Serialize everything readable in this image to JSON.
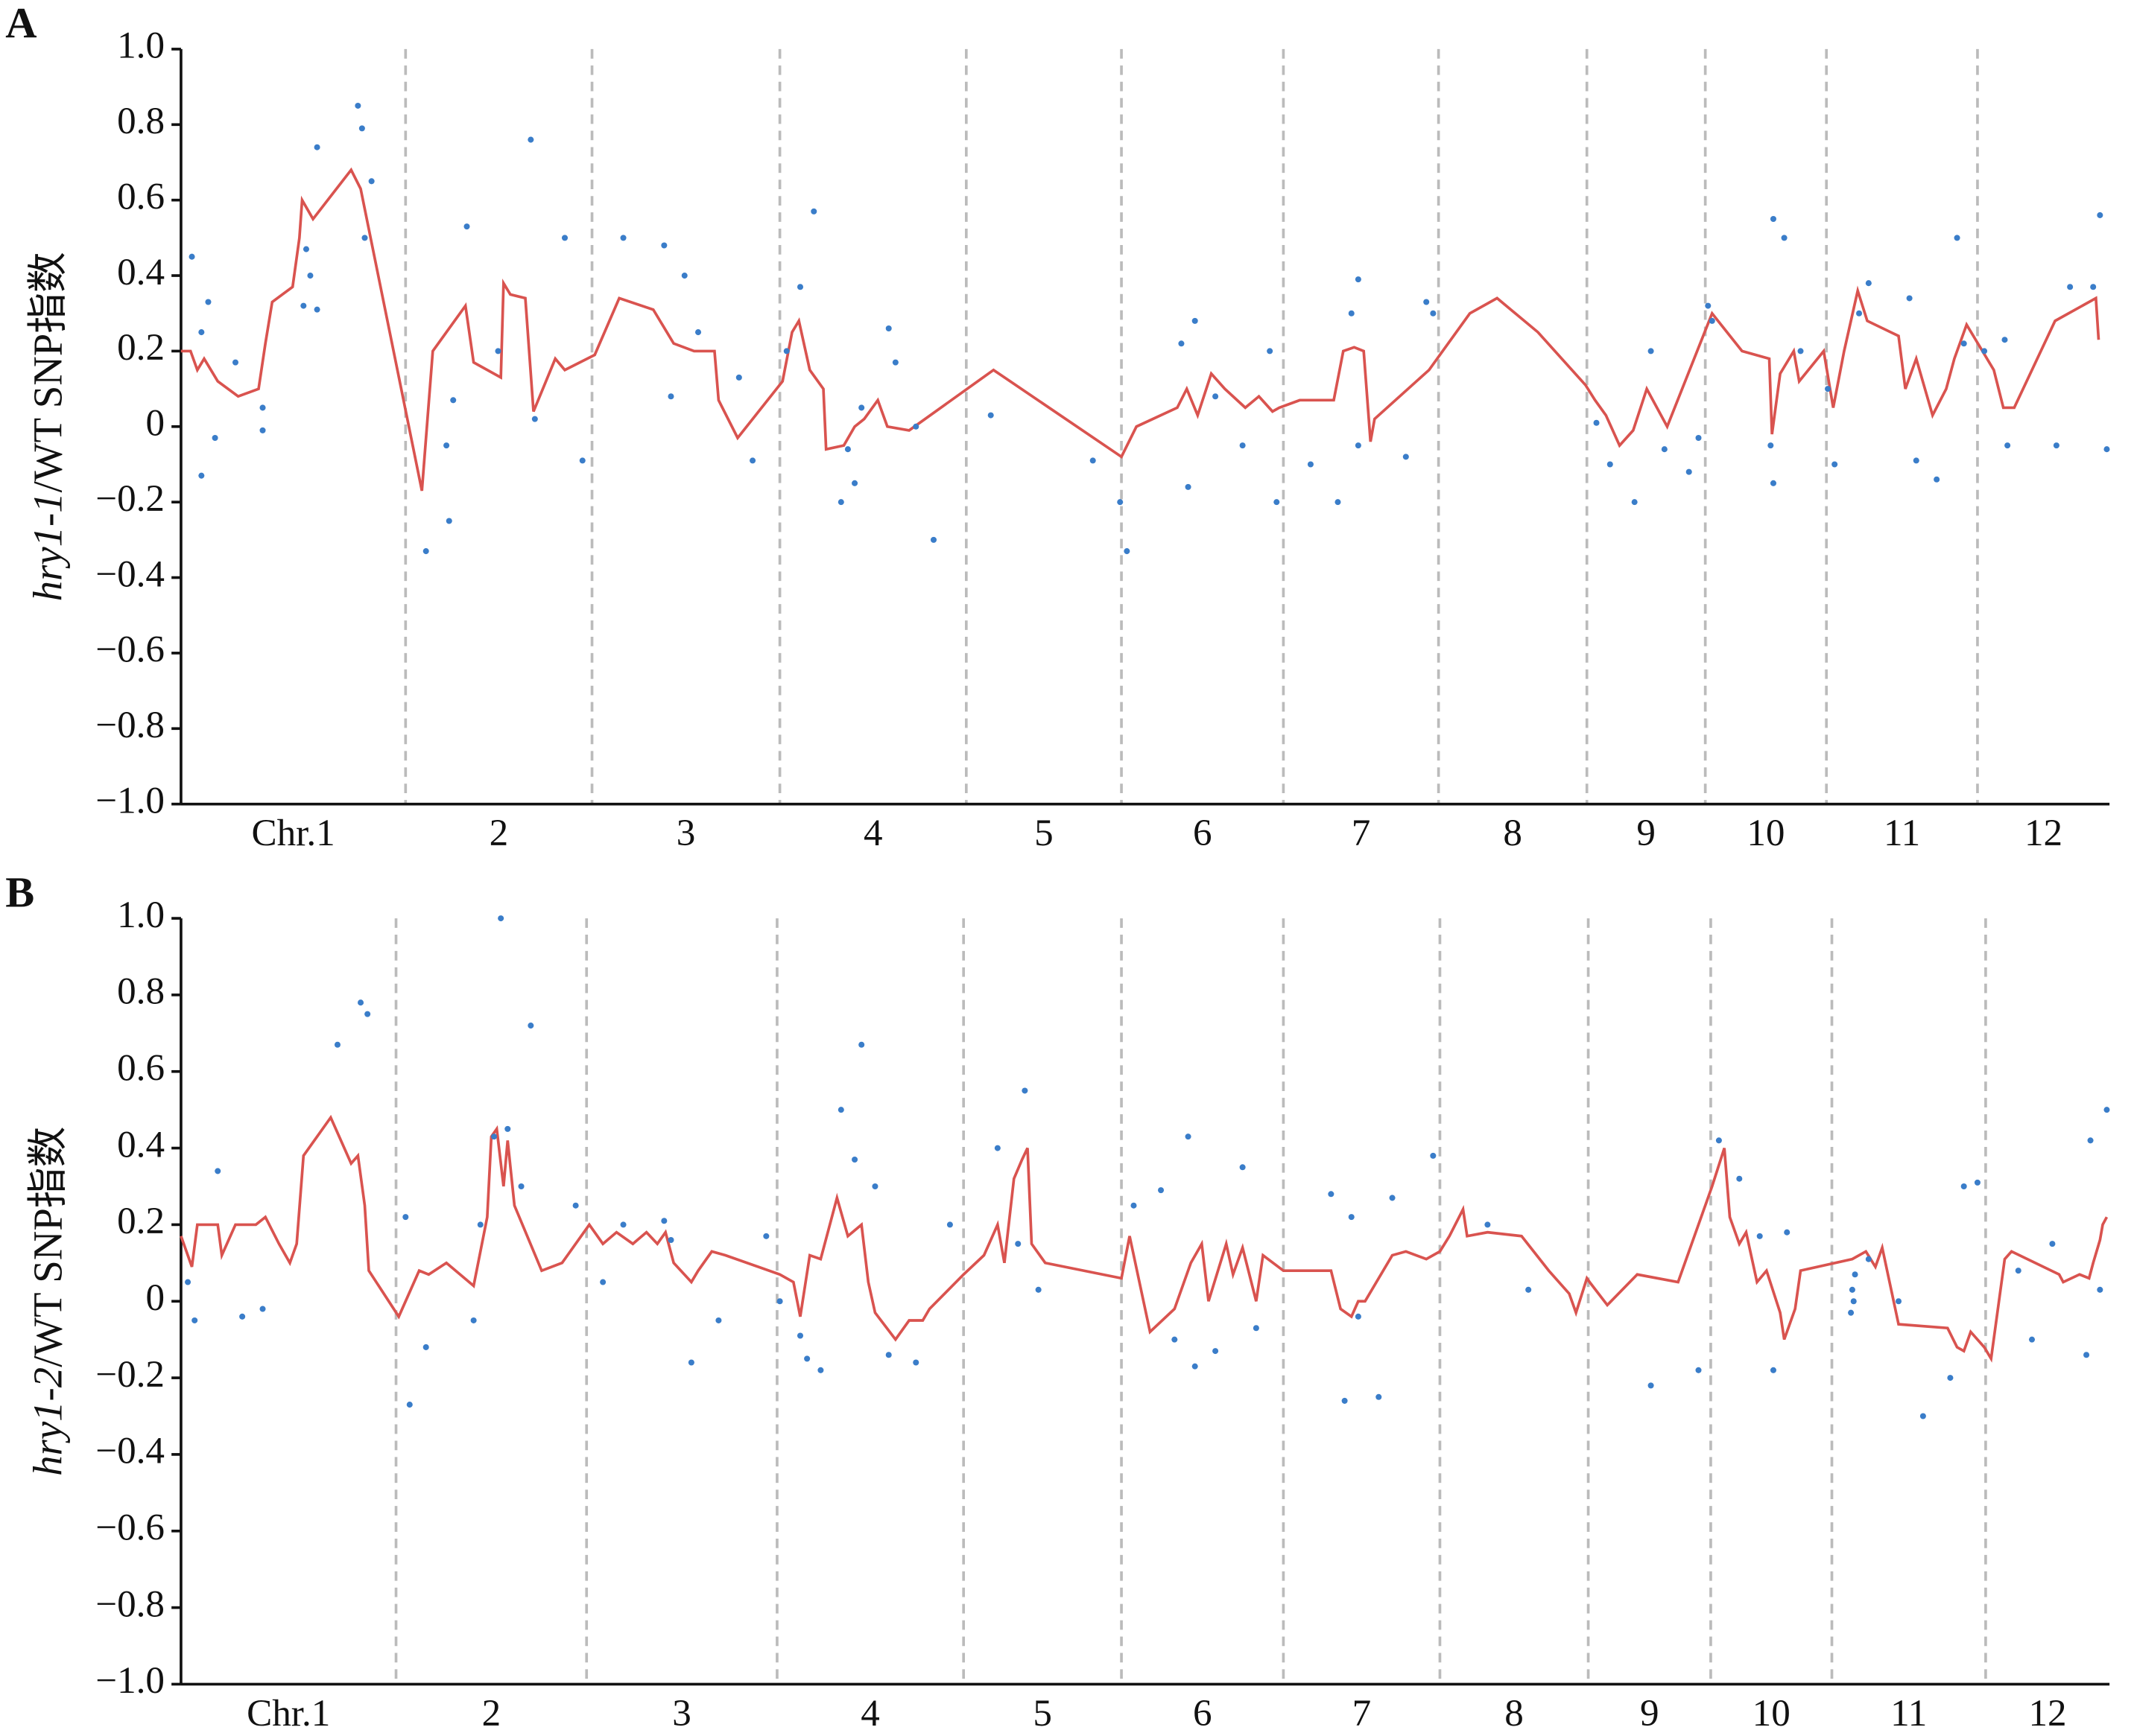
{
  "chart_data": [
    {
      "type": "line",
      "panel": "A",
      "ylabel": [
        "hry1-1",
        "/WT SNP指数"
      ],
      "categories": [
        "Chr.1",
        "2",
        "3",
        "4",
        "5",
        "6",
        "7",
        "8",
        "9",
        "10",
        "11",
        "12"
      ],
      "x_boundaries": [
        165,
        302,
        440,
        577,
        691,
        810,
        924,
        1033,
        1120,
        1209,
        1320
      ],
      "xlim": [
        0,
        1417
      ],
      "ylim": [
        -1,
        1
      ],
      "yticks": [
        {
          "value": 1,
          "label": "1.0"
        },
        0.8,
        0.6,
        0.4,
        0.2,
        0,
        {
          "value": -0.2,
          "label": "−0.2"
        },
        {
          "value": -0.4,
          "label": "−0.4"
        },
        {
          "value": -0.6,
          "label": "−0.6"
        },
        {
          "value": -0.8,
          "label": "−0.8"
        },
        {
          "value": -1,
          "label": "−1.0"
        }
      ],
      "line": {
        "color": "#d9534f",
        "x": [
          0,
          7,
          12,
          17,
          27,
          42,
          57,
          62,
          67,
          82,
          87,
          89,
          97,
          125,
          132,
          177,
          185,
          209,
          215,
          235,
          237,
          242,
          253,
          259,
          275,
          282,
          304,
          322,
          347,
          362,
          377,
          392,
          395,
          409,
          442,
          449,
          454,
          462,
          472,
          474,
          487,
          495,
          502,
          512,
          519,
          535,
          597,
          691,
          702,
          732,
          739,
          747,
          757,
          767,
          782,
          792,
          802,
          807,
          822,
          847,
          854,
          862,
          869,
          874,
          877,
          917,
          947,
          967,
          997,
          1032,
          1039,
          1047,
          1057,
          1067,
          1077,
          1092,
          1125,
          1147,
          1167,
          1169,
          1175,
          1185,
          1189,
          1207,
          1214,
          1222,
          1232,
          1239,
          1262,
          1267,
          1275,
          1287,
          1297,
          1303,
          1312,
          1332,
          1339,
          1347,
          1377,
          1407,
          1409
        ],
        "values": [
          0.2,
          0.2,
          0.15,
          0.18,
          0.12,
          0.08,
          0.1,
          0.22,
          0.33,
          0.37,
          0.5,
          0.6,
          0.55,
          0.68,
          0.63,
          -0.17,
          0.2,
          0.32,
          0.17,
          0.13,
          0.38,
          0.35,
          0.34,
          0.04,
          0.18,
          0.15,
          0.19,
          0.34,
          0.31,
          0.22,
          0.2,
          0.2,
          0.07,
          -0.03,
          0.12,
          0.25,
          0.28,
          0.15,
          0.1,
          -0.06,
          -0.05,
          0,
          0.02,
          0.07,
          0,
          -0.01,
          0.15,
          -0.08,
          0,
          0.05,
          0.1,
          0.03,
          0.14,
          0.1,
          0.05,
          0.08,
          0.04,
          0.05,
          0.07,
          0.07,
          0.2,
          0.21,
          0.2,
          -0.04,
          0.02,
          0.15,
          0.3,
          0.34,
          0.25,
          0.11,
          0.07,
          0.03,
          -0.05,
          -0.01,
          0.1,
          0,
          0.3,
          0.2,
          0.18,
          -0.02,
          0.14,
          0.2,
          0.12,
          0.2,
          0.05,
          0.2,
          0.36,
          0.28,
          0.24,
          0.1,
          0.18,
          0.03,
          0.1,
          0.18,
          0.27,
          0.15,
          0.05,
          0.05,
          0.28,
          0.34,
          0.23
        ]
      },
      "scatter": {
        "color": "#3a7dc9",
        "x": [
          130,
          133,
          100,
          140,
          92,
          95,
          90,
          100,
          135,
          8,
          20,
          15,
          25,
          60,
          60,
          40,
          15,
          257,
          210,
          282,
          233,
          200,
          197,
          180,
          195,
          260,
          295,
          325,
          355,
          370,
          380,
          360,
          410,
          420,
          455,
          465,
          445,
          495,
          485,
          490,
          520,
          525,
          500,
          553,
          540,
          595,
          670,
          695,
          690,
          745,
          735,
          740,
          760,
          780,
          800,
          805,
          865,
          860,
          850,
          830,
          865,
          900,
          920,
          915,
          1040,
          1050,
          1068,
          1080,
          1090,
          1115,
          1122,
          1125,
          1108,
          1170,
          1178,
          1168,
          1170,
          1190,
          1210,
          1215,
          1240,
          1233,
          1270,
          1275,
          1290,
          1305,
          1310,
          1325,
          1340,
          1342,
          1378,
          1410,
          1405,
          1415,
          1388
        ],
        "values": [
          0.85,
          0.79,
          0.74,
          0.65,
          0.47,
          0.4,
          0.32,
          0.31,
          0.5,
          0.45,
          0.33,
          0.25,
          -0.03,
          0.05,
          -0.01,
          0.17,
          -0.13,
          0.76,
          0.53,
          0.5,
          0.2,
          0.07,
          -0.25,
          -0.33,
          -0.05,
          0.02,
          -0.09,
          0.5,
          0.48,
          0.4,
          0.25,
          0.08,
          0.13,
          -0.09,
          0.37,
          0.57,
          0.2,
          -0.15,
          -0.2,
          -0.06,
          0.26,
          0.17,
          0.05,
          -0.3,
          0,
          0.03,
          -0.09,
          -0.33,
          -0.2,
          0.28,
          0.22,
          -0.16,
          0.08,
          -0.05,
          0.2,
          -0.2,
          0.39,
          0.3,
          -0.2,
          -0.1,
          -0.05,
          -0.08,
          0.3,
          0.33,
          0.01,
          -0.1,
          -0.2,
          0.2,
          -0.06,
          -0.03,
          0.32,
          0.28,
          -0.12,
          0.55,
          0.5,
          -0.05,
          -0.15,
          0.2,
          0.1,
          -0.1,
          0.38,
          0.3,
          0.34,
          -0.09,
          -0.14,
          0.5,
          0.22,
          0.2,
          0.23,
          -0.05,
          -0.05,
          0.56,
          0.37,
          -0.06,
          0.37
        ]
      }
    },
    {
      "type": "line",
      "panel": "B",
      "ylabel": [
        "hry1-2",
        "/WT SNP指数"
      ],
      "categories": [
        "Chr.1",
        "2",
        "3",
        "4",
        "5",
        "6",
        "7",
        "8",
        "9",
        "10",
        "11",
        "12"
      ],
      "x_boundaries": [
        158,
        298,
        438,
        575,
        691,
        810,
        925,
        1034,
        1124,
        1213,
        1326
      ],
      "xlim": [
        0,
        1417
      ],
      "ylim": [
        -1,
        1
      ],
      "yticks": [
        {
          "value": 1,
          "label": "1.0"
        },
        0.8,
        0.6,
        0.4,
        0.2,
        0,
        {
          "value": -0.2,
          "label": "−0.2"
        },
        {
          "value": -0.4,
          "label": "−0.4"
        },
        {
          "value": -0.6,
          "label": "−0.6"
        },
        {
          "value": -0.8,
          "label": "−0.8"
        },
        {
          "value": -1,
          "label": "−1.0"
        }
      ],
      "line": {
        "color": "#d9534f",
        "x": [
          0,
          8,
          12,
          27,
          30,
          40,
          55,
          62,
          72,
          80,
          85,
          90,
          110,
          125,
          130,
          135,
          138,
          160,
          175,
          182,
          195,
          215,
          225,
          228,
          232,
          237,
          240,
          245,
          265,
          280,
          300,
          310,
          320,
          332,
          342,
          350,
          356,
          362,
          375,
          380,
          390,
          400,
          440,
          450,
          455,
          462,
          470,
          482,
          490,
          500,
          505,
          510,
          525,
          535,
          545,
          550,
          575,
          590,
          600,
          605,
          612,
          618,
          622,
          625,
          635,
          691,
          697,
          712,
          730,
          742,
          750,
          755,
          768,
          773,
          780,
          790,
          795,
          810,
          845,
          852,
          860,
          865,
          870,
          890,
          900,
          915,
          925,
          932,
          942,
          945,
          960,
          985,
          1005,
          1020,
          1025,
          1033,
          1035,
          1048,
          1070,
          1100,
          1125,
          1134,
          1138,
          1145,
          1150,
          1158,
          1165,
          1175,
          1178,
          1186,
          1190,
          1228,
          1238,
          1245,
          1250,
          1262,
          1298,
          1305,
          1310,
          1315,
          1325,
          1330,
          1340,
          1345,
          1380,
          1383,
          1395,
          1402,
          1405,
          1410,
          1412,
          1415
        ],
        "values": [
          0.17,
          0.09,
          0.2,
          0.2,
          0.12,
          0.2,
          0.2,
          0.22,
          0.15,
          0.1,
          0.15,
          0.38,
          0.48,
          0.36,
          0.38,
          0.25,
          0.08,
          -0.04,
          0.08,
          0.07,
          0.1,
          0.04,
          0.22,
          0.43,
          0.45,
          0.3,
          0.42,
          0.25,
          0.08,
          0.1,
          0.2,
          0.15,
          0.18,
          0.15,
          0.18,
          0.15,
          0.18,
          0.1,
          0.05,
          0.08,
          0.13,
          0.12,
          0.07,
          0.05,
          -0.04,
          0.12,
          0.11,
          0.27,
          0.17,
          0.2,
          0.05,
          -0.03,
          -0.1,
          -0.05,
          -0.05,
          -0.02,
          0.07,
          0.12,
          0.2,
          0.1,
          0.32,
          0.37,
          0.4,
          0.15,
          0.1,
          0.06,
          0.17,
          -0.08,
          -0.02,
          0.1,
          0.15,
          0,
          0.15,
          0.07,
          0.14,
          0,
          0.12,
          0.08,
          0.08,
          -0.02,
          -0.04,
          0,
          0,
          0.12,
          0.13,
          0.11,
          0.13,
          0.17,
          0.24,
          0.17,
          0.18,
          0.17,
          0.08,
          0.02,
          -0.03,
          0.06,
          0.05,
          -0.01,
          0.07,
          0.05,
          0.3,
          0.4,
          0.22,
          0.15,
          0.18,
          0.05,
          0.08,
          -0.03,
          -0.1,
          -0.02,
          0.08,
          0.11,
          0.13,
          0.09,
          0.14,
          -0.06,
          -0.07,
          -0.12,
          -0.13,
          -0.08,
          -0.12,
          -0.15,
          0.11,
          0.13,
          0.07,
          0.05,
          0.07,
          0.06,
          0.1,
          0.16,
          0.2,
          0.22
        ]
      },
      "scatter": {
        "color": "#3a7dc9",
        "x": [
          132,
          137,
          115,
          257,
          235,
          230,
          240,
          250,
          27,
          10,
          5,
          45,
          60,
          168,
          165,
          180,
          220,
          215,
          290,
          310,
          325,
          355,
          360,
          375,
          395,
          430,
          440,
          455,
          460,
          470,
          485,
          500,
          495,
          510,
          520,
          540,
          565,
          600,
          620,
          615,
          630,
          700,
          720,
          740,
          730,
          745,
          760,
          780,
          790,
          845,
          855,
          860,
          865,
          880,
          890,
          920,
          960,
          990,
          1080,
          1115,
          1130,
          1145,
          1160,
          1170,
          1180,
          1230,
          1228,
          1227,
          1229,
          1240,
          1262,
          1280,
          1300,
          1310,
          1320,
          1350,
          1360,
          1375,
          1400,
          1403,
          1415,
          1410
        ],
        "values": [
          0.78,
          0.75,
          0.67,
          0.72,
          1.0,
          0.43,
          0.45,
          0.3,
          0.34,
          -0.05,
          0.05,
          -0.04,
          -0.02,
          -0.27,
          0.22,
          -0.12,
          0.2,
          -0.05,
          0.25,
          0.05,
          0.2,
          0.21,
          0.16,
          -0.16,
          -0.05,
          0.17,
          0,
          -0.09,
          -0.15,
          -0.18,
          0.5,
          0.67,
          0.37,
          0.3,
          -0.14,
          -0.16,
          0.2,
          0.4,
          0.55,
          0.15,
          0.03,
          0.25,
          0.29,
          0.43,
          -0.1,
          -0.17,
          -0.13,
          0.35,
          -0.07,
          0.28,
          -0.26,
          0.22,
          -0.04,
          -0.25,
          0.27,
          0.38,
          0.2,
          0.03,
          -0.22,
          -0.18,
          0.42,
          0.32,
          0.17,
          -0.18,
          0.18,
          0.07,
          0.03,
          -0.03,
          0,
          0.11,
          0,
          -0.3,
          -0.2,
          0.3,
          0.31,
          0.08,
          -0.1,
          0.15,
          -0.14,
          0.42,
          0.5,
          0.03
        ]
      }
    }
  ]
}
